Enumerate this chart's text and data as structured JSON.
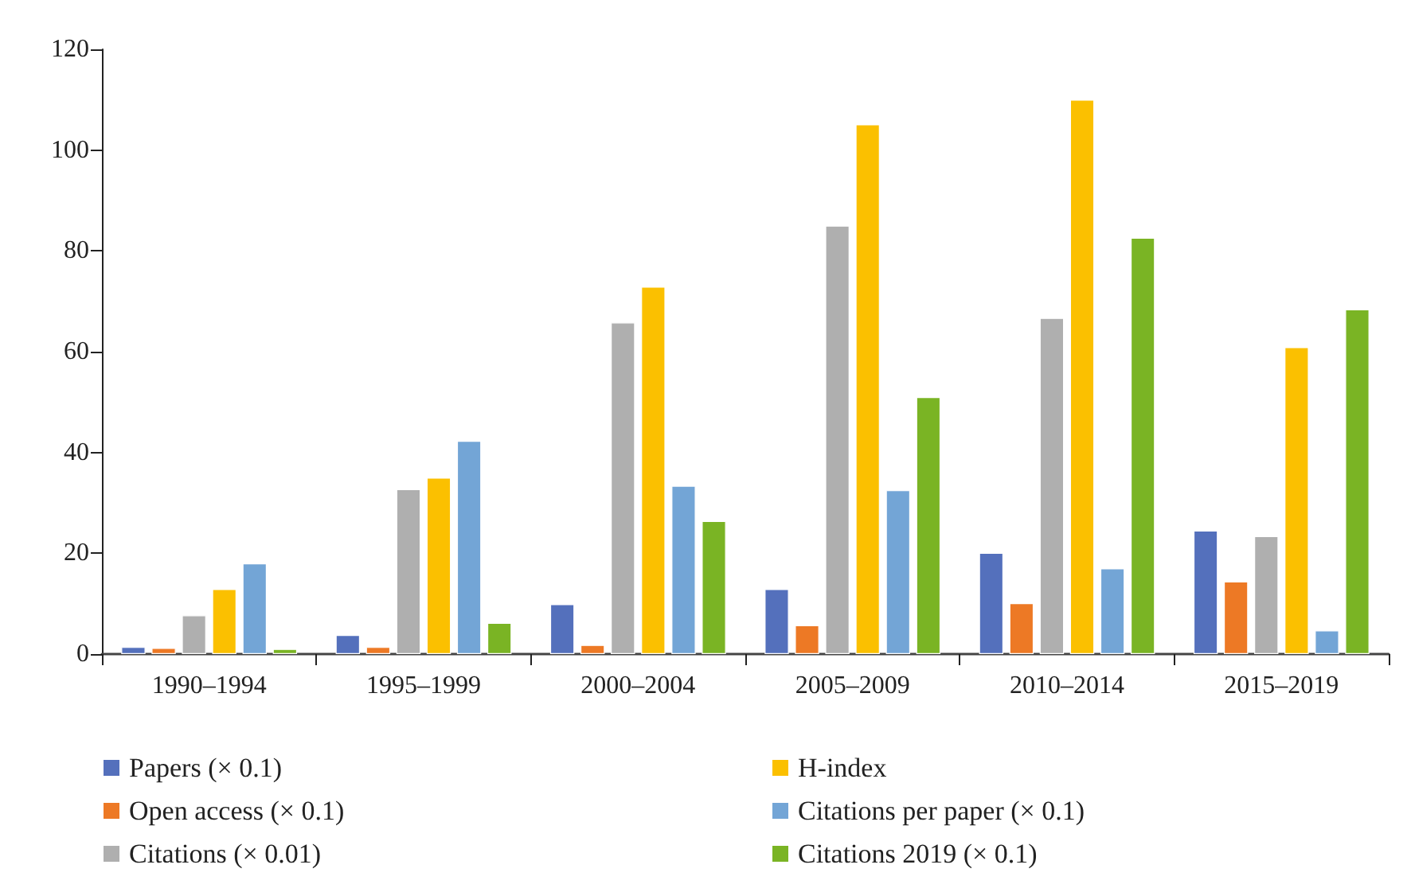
{
  "chart_data": {
    "type": "bar",
    "categories": [
      "1990–1994",
      "1995–1999",
      "2000–2004",
      "2005–2009",
      "2010–2014",
      "2015–2019"
    ],
    "series": [
      {
        "name": "Papers (× 0.1)",
        "color": "#5470bc",
        "values": [
          1.4,
          3.8,
          9.9,
          12.9,
          20.1,
          24.5
        ]
      },
      {
        "name": "Open access (× 0.1)",
        "color": "#ed7925",
        "values": [
          1.2,
          1.4,
          1.8,
          5.7,
          10.1,
          14.4
        ]
      },
      {
        "name": "Citations (× 0.01)",
        "color": "#afafaf",
        "values": [
          7.7,
          32.7,
          65.8,
          85,
          66.7,
          23.4
        ]
      },
      {
        "name": "H-index",
        "color": "#fbc000",
        "values": [
          12.9,
          35,
          72.9,
          105.1,
          110,
          60.9
        ]
      },
      {
        "name": "Citations per paper (× 0.1)",
        "color": "#73a5d6",
        "values": [
          18,
          42.3,
          33.4,
          32.5,
          17,
          4.7
        ]
      },
      {
        "name": "Citations 2019 (× 0.1)",
        "color": "#7ab424",
        "values": [
          1.0,
          6.2,
          26.4,
          51,
          82.6,
          68.4
        ]
      }
    ],
    "ylim": [
      0,
      120
    ],
    "yticks": [
      0,
      20,
      40,
      60,
      80,
      100,
      120
    ],
    "grid": false,
    "legend": "bottom"
  }
}
